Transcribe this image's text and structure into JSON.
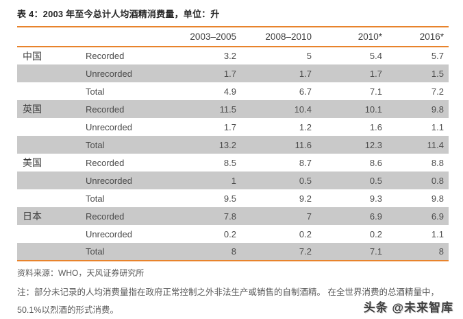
{
  "title": "表 4：2003 年至今总计人均酒精消费量，单位：升",
  "table": {
    "column_headers": [
      "2003–2005",
      "2008–2010",
      "2010*",
      "2016*"
    ],
    "sections": [
      {
        "country": "中国",
        "rows": [
          {
            "label": "Recorded",
            "values": [
              "3.2",
              "5",
              "5.4",
              "5.7"
            ]
          },
          {
            "label": "Unrecorded",
            "values": [
              "1.7",
              "1.7",
              "1.7",
              "1.5"
            ]
          },
          {
            "label": "Total",
            "values": [
              "4.9",
              "6.7",
              "7.1",
              "7.2"
            ]
          }
        ]
      },
      {
        "country": "英国",
        "rows": [
          {
            "label": "Recorded",
            "values": [
              "11.5",
              "10.4",
              "10.1",
              "9.8"
            ]
          },
          {
            "label": "Unrecorded",
            "values": [
              "1.7",
              "1.2",
              "1.6",
              "1.1"
            ]
          },
          {
            "label": "Total",
            "values": [
              "13.2",
              "11.6",
              "12.3",
              "11.4"
            ]
          }
        ]
      },
      {
        "country": "美国",
        "rows": [
          {
            "label": "Recorded",
            "values": [
              "8.5",
              "8.7",
              "8.6",
              "8.8"
            ]
          },
          {
            "label": "Unrecorded",
            "values": [
              "1",
              "0.5",
              "0.5",
              "0.8"
            ]
          },
          {
            "label": "Total",
            "values": [
              "9.5",
              "9.2",
              "9.3",
              "9.8"
            ]
          }
        ]
      },
      {
        "country": "日本",
        "rows": [
          {
            "label": "Recorded",
            "values": [
              "7.8",
              "7",
              "6.9",
              "6.9"
            ]
          },
          {
            "label": "Unrecorded",
            "values": [
              "0.2",
              "0.2",
              "0.2",
              "1.1"
            ]
          },
          {
            "label": "Total",
            "values": [
              "8",
              "7.2",
              "7.1",
              "8"
            ]
          }
        ]
      }
    ]
  },
  "footer": {
    "source": "资料来源：WHO，天风证券研究所",
    "note": "注：部分未记录的人均消费量指在政府正常控制之外非法生产或销售的自制酒精。 在全世界消费的总酒精量中，50.1%以烈酒的形式消费。",
    "watermark": "头条 @未来智库"
  },
  "colors": {
    "accent_rule": "#E8832C",
    "row_alternate": "#C9C9C9",
    "body_text": "#404040"
  }
}
